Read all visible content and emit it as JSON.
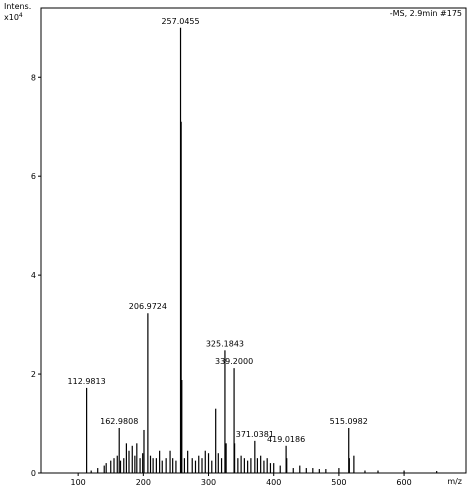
{
  "chart_data": {
    "type": "stick",
    "title": "-MS, 2.9min #175",
    "y_label": "Intens.",
    "y_multiplier": "x10",
    "y_multiplier_exp": "4",
    "x_label": "m/z",
    "color": "#000000",
    "xlim": [
      43,
      695
    ],
    "ylim": [
      0,
      9.4
    ],
    "xticks": [
      100,
      200,
      300,
      400,
      500,
      600
    ],
    "yticks": [
      0,
      2,
      4,
      6,
      8
    ],
    "x": [
      112.9813,
      120,
      130,
      140,
      143,
      150,
      155,
      160,
      162.9808,
      165,
      170,
      174,
      178,
      183,
      187,
      190,
      195,
      199,
      201,
      206.9724,
      211,
      215,
      220,
      225,
      229,
      235,
      241,
      245,
      250,
      257.0455,
      258,
      259,
      263,
      268,
      275,
      280,
      285,
      290,
      295,
      300,
      305,
      311,
      315,
      320,
      325.1843,
      327,
      339.2,
      340,
      345,
      350,
      355,
      360,
      365,
      371.0381,
      375,
      380,
      385,
      390,
      395,
      400,
      410,
      419.0186,
      420,
      430,
      440,
      450,
      460,
      470,
      480,
      500,
      515.0982,
      516,
      523,
      540,
      560,
      600,
      650
    ],
    "values": [
      1.72,
      0.05,
      0.1,
      0.15,
      0.2,
      0.25,
      0.3,
      0.35,
      0.91,
      0.25,
      0.3,
      0.6,
      0.45,
      0.55,
      0.35,
      0.6,
      0.3,
      0.4,
      0.87,
      3.23,
      0.35,
      0.3,
      0.3,
      0.45,
      0.25,
      0.3,
      0.45,
      0.3,
      0.25,
      9.0,
      7.1,
      1.88,
      0.3,
      0.45,
      0.3,
      0.25,
      0.35,
      0.3,
      0.45,
      0.4,
      0.25,
      1.3,
      0.4,
      0.3,
      2.48,
      0.6,
      2.12,
      0.6,
      0.3,
      0.35,
      0.3,
      0.25,
      0.3,
      0.65,
      0.3,
      0.35,
      0.25,
      0.3,
      0.2,
      0.2,
      0.15,
      0.55,
      0.3,
      0.1,
      0.15,
      0.1,
      0.1,
      0.08,
      0.08,
      0.1,
      0.91,
      0.3,
      0.35,
      0.05,
      0.05,
      0.05,
      0.04
    ],
    "x_labels": [
      "112.9813",
      null,
      null,
      null,
      null,
      null,
      null,
      null,
      "162.9808",
      null,
      null,
      null,
      null,
      null,
      null,
      null,
      null,
      null,
      null,
      "206.9724",
      null,
      null,
      null,
      null,
      null,
      null,
      null,
      null,
      null,
      "257.0455",
      null,
      null,
      null,
      null,
      null,
      null,
      null,
      null,
      null,
      null,
      null,
      null,
      null,
      null,
      "325.1843",
      null,
      "339.2000",
      null,
      null,
      null,
      null,
      null,
      null,
      "371.0381",
      null,
      null,
      null,
      null,
      null,
      null,
      null,
      "419.0186",
      null,
      null,
      null,
      null,
      null,
      null,
      null,
      null,
      "515.0982",
      null,
      null,
      null,
      null,
      null,
      null
    ]
  }
}
